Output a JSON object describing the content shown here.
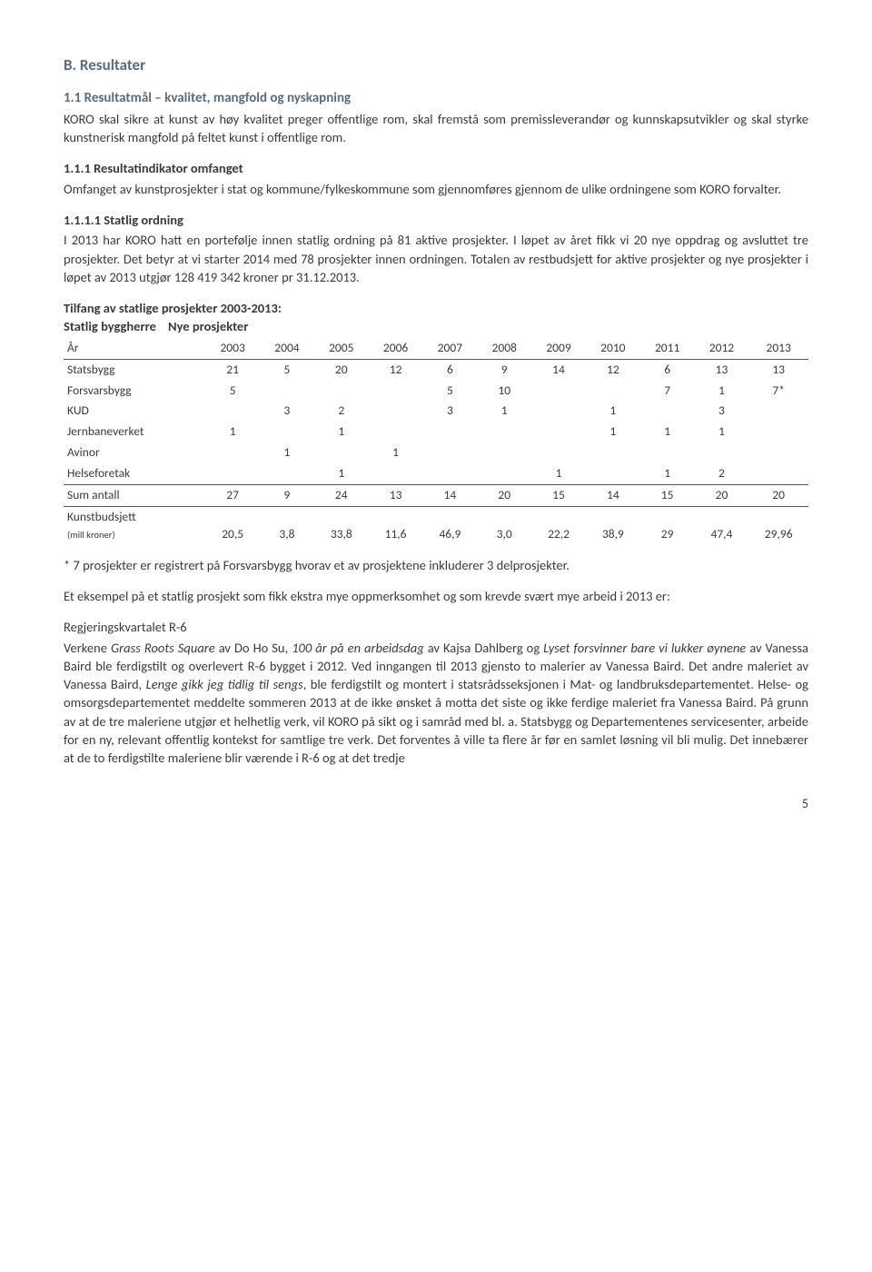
{
  "headings": {
    "main": "B. Resultater",
    "sub1": "1.1 Resultatmål – kvalitet, mangfold og nyskapning",
    "sub2_label": "1.1.1 Resultatindikator omfanget",
    "sub3_label": "1.1.1.1 Statlig ordning"
  },
  "paragraphs": {
    "p1": "KORO skal sikre at kunst av høy kvalitet preger offentlige rom, skal fremstå som premissleverandør og kunnskapsutvikler og skal styrke kunstnerisk mangfold på feltet kunst i offentlige rom.",
    "p2": "Omfanget av kunstprosjekter i stat og kommune/fylkeskommune som gjennomføres gjennom de ulike ordningene som KORO forvalter.",
    "p3": "I 2013 har KORO hatt en portefølje innen statlig ordning på 81 aktive prosjekter. I løpet av året fikk vi 20 nye oppdrag og avsluttet tre prosjekter. Det betyr at vi starter 2014 med 78 prosjekter innen ordningen. Totalen av restbudsjett for aktive prosjekter og nye prosjekter i løpet av 2013 utgjør 128 419 342 kroner pr 31.12.2013.",
    "p4": "* 7 prosjekter er registrert på Forsvarsbygg hvorav et av prosjektene inkluderer 3 delprosjekter.",
    "p5": "Et eksempel på et statlig prosjekt som fikk ekstra mye oppmerksomhet og som krevde svært mye arbeid i 2013 er:",
    "p6_title": "Regjeringskvartalet R-6",
    "p6a": "Verkene ",
    "p6b": "Grass Roots Square",
    "p6c": " av Do Ho Su, ",
    "p6d": "100 år på en arbeidsdag",
    "p6e": " av Kajsa Dahlberg og ",
    "p6f": "Lyset forsvinner bare vi lukker øynene",
    "p6g": " av Vanessa Baird ble ferdigstilt og overlevert R-6 bygget i 2012. Ved inngangen til 2013 gjensto to malerier av Vanessa Baird. Det andre maleriet av Vanessa Baird, ",
    "p6h": "Lenge gikk jeg tidlig til sengs",
    "p6i": ", ble ferdigstilt og montert i statsrådsseksjonen i Mat- og landbruksdepartementet. Helse- og omsorgsdepartementet meddelte sommeren 2013 at de ikke ønsket å motta det siste og ikke ferdige maleriet fra Vanessa Baird. På grunn av at de tre maleriene utgjør et helhetlig verk, vil KORO på sikt og i samråd med bl. a. Statsbygg og Departementenes servicesenter, arbeide for en ny, relevant offentlig kontekst for samtlige tre verk. Det forventes å ville ta flere år før en samlet løsning vil bli mulig. Det innebærer at de to ferdigstilte maleriene blir værende i R-6 og at det tredje"
  },
  "table": {
    "title": "Tilfang av statlige prosjekter 2003-2013:",
    "subtitle_left": "Statlig byggherre",
    "subtitle_right": "Nye prosjekter",
    "years_label": "År",
    "years": [
      "2003",
      "2004",
      "2005",
      "2006",
      "2007",
      "2008",
      "2009",
      "2010",
      "2011",
      "2012",
      "2013"
    ],
    "rows": [
      {
        "label": "Statsbygg",
        "v": [
          "21",
          "5",
          "20",
          "12",
          "6",
          "9",
          "14",
          "12",
          "6",
          "13",
          "13"
        ]
      },
      {
        "label": "Forsvarsbygg",
        "v": [
          "5",
          "",
          "",
          "",
          "5",
          "10",
          "",
          "",
          "7",
          "1",
          "7*"
        ]
      },
      {
        "label": "KUD",
        "v": [
          "",
          "3",
          "2",
          "",
          "3",
          "1",
          "",
          "1",
          "",
          "3",
          ""
        ]
      },
      {
        "label": "Jernbaneverket",
        "v": [
          "1",
          "",
          "1",
          "",
          "",
          "",
          "",
          "1",
          "1",
          "1",
          ""
        ]
      },
      {
        "label": "Avinor",
        "v": [
          "",
          "1",
          "",
          "1",
          "",
          "",
          "",
          "",
          "",
          "",
          ""
        ]
      },
      {
        "label": "Helseforetak",
        "v": [
          "",
          "",
          "1",
          "",
          "",
          "",
          "1",
          "",
          "1",
          "2",
          ""
        ]
      }
    ],
    "sum_label": "Sum antall",
    "sum": [
      "27",
      "9",
      "24",
      "13",
      "14",
      "20",
      "15",
      "14",
      "15",
      "20",
      "20"
    ],
    "budget_label1": "Kunstbudsjett",
    "budget_label2": "(mill kroner)",
    "budget": [
      "20,5",
      "3,8",
      "33,8",
      "11,6",
      "46,9",
      "3,0",
      "22,2",
      "38,9",
      "29",
      "47,4",
      "29,96"
    ]
  },
  "page_number": "5"
}
